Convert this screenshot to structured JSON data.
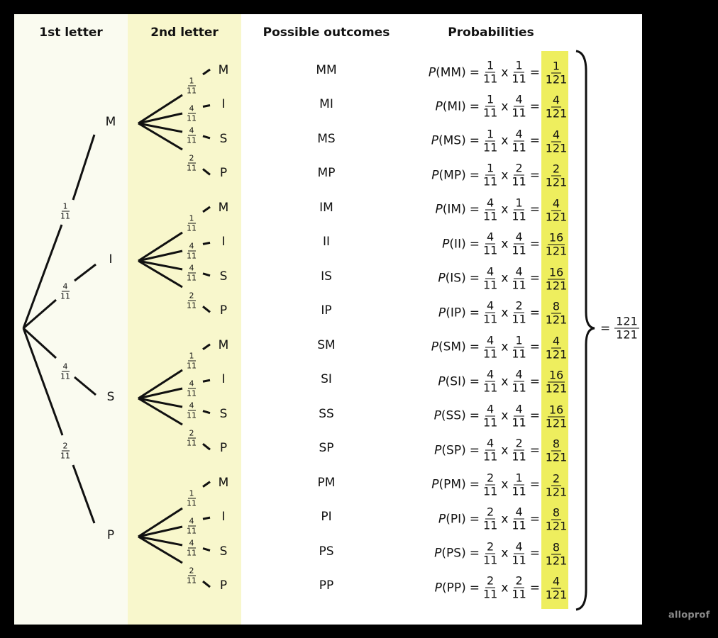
{
  "headers": {
    "first_letter": "1st letter",
    "second_letter": "2nd letter",
    "outcomes": "Possible outcomes",
    "probabilities": "Probabilities"
  },
  "colors": {
    "col1_bg": "#fafbf0",
    "col2_bg": "#f8f7cc",
    "highlight": "#eeee5e",
    "background": "#000000"
  },
  "first_level": [
    {
      "letter": "M",
      "prob": {
        "n": "1",
        "d": "11"
      }
    },
    {
      "letter": "I",
      "prob": {
        "n": "4",
        "d": "11"
      }
    },
    {
      "letter": "S",
      "prob": {
        "n": "4",
        "d": "11"
      }
    },
    {
      "letter": "P",
      "prob": {
        "n": "2",
        "d": "11"
      }
    }
  ],
  "second_level": [
    {
      "letter": "M",
      "prob": {
        "n": "1",
        "d": "11"
      }
    },
    {
      "letter": "I",
      "prob": {
        "n": "4",
        "d": "11"
      }
    },
    {
      "letter": "S",
      "prob": {
        "n": "4",
        "d": "11"
      }
    },
    {
      "letter": "P",
      "prob": {
        "n": "2",
        "d": "11"
      }
    }
  ],
  "rows": [
    {
      "outcome": "MM",
      "label": "P",
      "paren": "(MM)",
      "a": {
        "n": "1",
        "d": "11"
      },
      "b": {
        "n": "1",
        "d": "11"
      },
      "r": {
        "n": "1",
        "d": "121"
      }
    },
    {
      "outcome": "MI",
      "label": "P",
      "paren": "(MI)",
      "a": {
        "n": "1",
        "d": "11"
      },
      "b": {
        "n": "4",
        "d": "11"
      },
      "r": {
        "n": "4",
        "d": "121"
      }
    },
    {
      "outcome": "MS",
      "label": "P",
      "paren": "(MS)",
      "a": {
        "n": "1",
        "d": "11"
      },
      "b": {
        "n": "4",
        "d": "11"
      },
      "r": {
        "n": "4",
        "d": "121"
      }
    },
    {
      "outcome": "MP",
      "label": "P",
      "paren": "(MP)",
      "a": {
        "n": "1",
        "d": "11"
      },
      "b": {
        "n": "2",
        "d": "11"
      },
      "r": {
        "n": "2",
        "d": "121"
      }
    },
    {
      "outcome": "IM",
      "label": "P",
      "paren": "(IM)",
      "a": {
        "n": "4",
        "d": "11"
      },
      "b": {
        "n": "1",
        "d": "11"
      },
      "r": {
        "n": "4",
        "d": "121"
      }
    },
    {
      "outcome": "II",
      "label": "P",
      "paren": "(II)",
      "a": {
        "n": "4",
        "d": "11"
      },
      "b": {
        "n": "4",
        "d": "11"
      },
      "r": {
        "n": "16",
        "d": "121"
      }
    },
    {
      "outcome": "IS",
      "label": "P",
      "paren": "(IS)",
      "a": {
        "n": "4",
        "d": "11"
      },
      "b": {
        "n": "4",
        "d": "11"
      },
      "r": {
        "n": "16",
        "d": "121"
      }
    },
    {
      "outcome": "IP",
      "label": "P",
      "paren": "(IP)",
      "a": {
        "n": "4",
        "d": "11"
      },
      "b": {
        "n": "2",
        "d": "11"
      },
      "r": {
        "n": "8",
        "d": "121"
      }
    },
    {
      "outcome": "SM",
      "label": "P",
      "paren": "(SM)",
      "a": {
        "n": "4",
        "d": "11"
      },
      "b": {
        "n": "1",
        "d": "11"
      },
      "r": {
        "n": "4",
        "d": "121"
      }
    },
    {
      "outcome": "SI",
      "label": "P",
      "paren": "(SI)",
      "a": {
        "n": "4",
        "d": "11"
      },
      "b": {
        "n": "4",
        "d": "11"
      },
      "r": {
        "n": "16",
        "d": "121"
      }
    },
    {
      "outcome": "SS",
      "label": "P",
      "paren": "(SS)",
      "a": {
        "n": "4",
        "d": "11"
      },
      "b": {
        "n": "4",
        "d": "11"
      },
      "r": {
        "n": "16",
        "d": "121"
      }
    },
    {
      "outcome": "SP",
      "label": "P",
      "paren": "(SP)",
      "a": {
        "n": "4",
        "d": "11"
      },
      "b": {
        "n": "2",
        "d": "11"
      },
      "r": {
        "n": "8",
        "d": "121"
      }
    },
    {
      "outcome": "PM",
      "label": "P",
      "paren": "(PM)",
      "a": {
        "n": "2",
        "d": "11"
      },
      "b": {
        "n": "1",
        "d": "11"
      },
      "r": {
        "n": "2",
        "d": "121"
      }
    },
    {
      "outcome": "PI",
      "label": "P",
      "paren": "(PI)",
      "a": {
        "n": "2",
        "d": "11"
      },
      "b": {
        "n": "4",
        "d": "11"
      },
      "r": {
        "n": "8",
        "d": "121"
      }
    },
    {
      "outcome": "PS",
      "label": "P",
      "paren": "(PS)",
      "a": {
        "n": "2",
        "d": "11"
      },
      "b": {
        "n": "4",
        "d": "11"
      },
      "r": {
        "n": "8",
        "d": "121"
      }
    },
    {
      "outcome": "PP",
      "label": "P",
      "paren": "(PP)",
      "a": {
        "n": "2",
        "d": "11"
      },
      "b": {
        "n": "2",
        "d": "11"
      },
      "r": {
        "n": "4",
        "d": "121"
      }
    }
  ],
  "symbols": {
    "equals": "=",
    "times": "x"
  },
  "total": {
    "equals": "=",
    "n": "121",
    "d": "121"
  },
  "logo": "alloprof"
}
